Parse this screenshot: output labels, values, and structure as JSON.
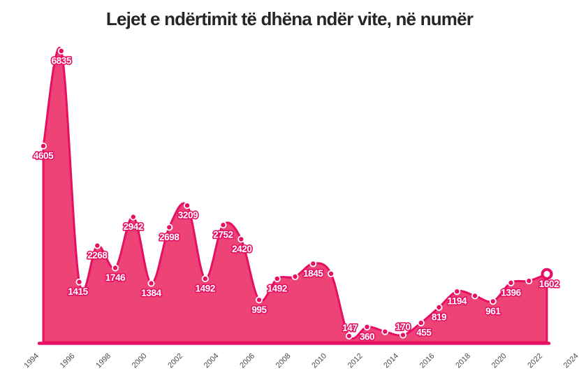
{
  "title": "Lejet e ndërtimit të dhëna ndër vite, në numër",
  "chart_data": {
    "type": "area",
    "title": "Lejet e ndërtimit të dhëna ndër vite, në numër",
    "xlabel": "",
    "ylabel": "",
    "x": [
      1994,
      1995,
      1996,
      1997,
      1998,
      1999,
      2000,
      2001,
      2002,
      2003,
      2004,
      2005,
      2006,
      2007,
      2008,
      2009,
      2010,
      2011,
      2012,
      2013,
      2014,
      2015,
      2016,
      2017,
      2018,
      2019,
      2020,
      2021,
      2022
    ],
    "values": [
      4605,
      6835,
      1415,
      2268,
      1746,
      2942,
      1384,
      2698,
      3209,
      1492,
      2752,
      2420,
      995,
      1492,
      1540,
      1845,
      1610,
      147,
      360,
      250,
      170,
      455,
      819,
      1194,
      1090,
      961,
      1396,
      1440,
      1602
    ],
    "point_labels": [
      "4605",
      "6835",
      "1415",
      "2268",
      "1746",
      "2942",
      "1384",
      "2698",
      "3209",
      "1492",
      "2752",
      "2420",
      "995",
      "1492",
      null,
      "1845",
      null,
      "147",
      "360",
      null,
      "170",
      "455",
      "819",
      "1194",
      null,
      "961",
      "1396",
      null,
      "1602"
    ],
    "label_side": [
      "below",
      "below",
      "below",
      "below",
      "below",
      "below",
      "below",
      "below",
      "below",
      "below",
      "below",
      "below",
      "below",
      "below",
      null,
      "below",
      null,
      "above",
      "below",
      null,
      "above",
      "below",
      "below",
      "below",
      null,
      "below",
      "below",
      null,
      "below"
    ],
    "label_dx": [
      0,
      0,
      -2,
      0,
      0,
      0,
      0,
      0,
      1,
      0,
      0,
      1,
      0,
      0,
      0,
      0,
      0,
      1,
      0,
      0,
      0,
      4,
      0,
      0,
      0,
      0,
      0,
      0,
      3
    ],
    "unlabeled_values_are_estimates": true,
    "xticks": [
      "1994",
      "1996",
      "1998",
      "2000",
      "2002",
      "2004",
      "2006",
      "2008",
      "2010",
      "2012",
      "2014",
      "2016",
      "2018",
      "2020",
      "2022",
      "2024"
    ],
    "xlim": [
      1994,
      2024
    ],
    "ylim": [
      0,
      6900
    ],
    "grid": false,
    "legend": null,
    "last_point_emphasized": true,
    "colors": {
      "line": "#e60f63",
      "fill": "#ee4377",
      "label_text": "#ffffff",
      "label_outline": "#e60f63",
      "dot_fill": "#e60f63",
      "dot_ring": "#ffffff",
      "endpoint_fill": "#ffffff",
      "axis_text": "#4d4d4d",
      "title_text": "#262626",
      "background": "#ffffff"
    }
  }
}
